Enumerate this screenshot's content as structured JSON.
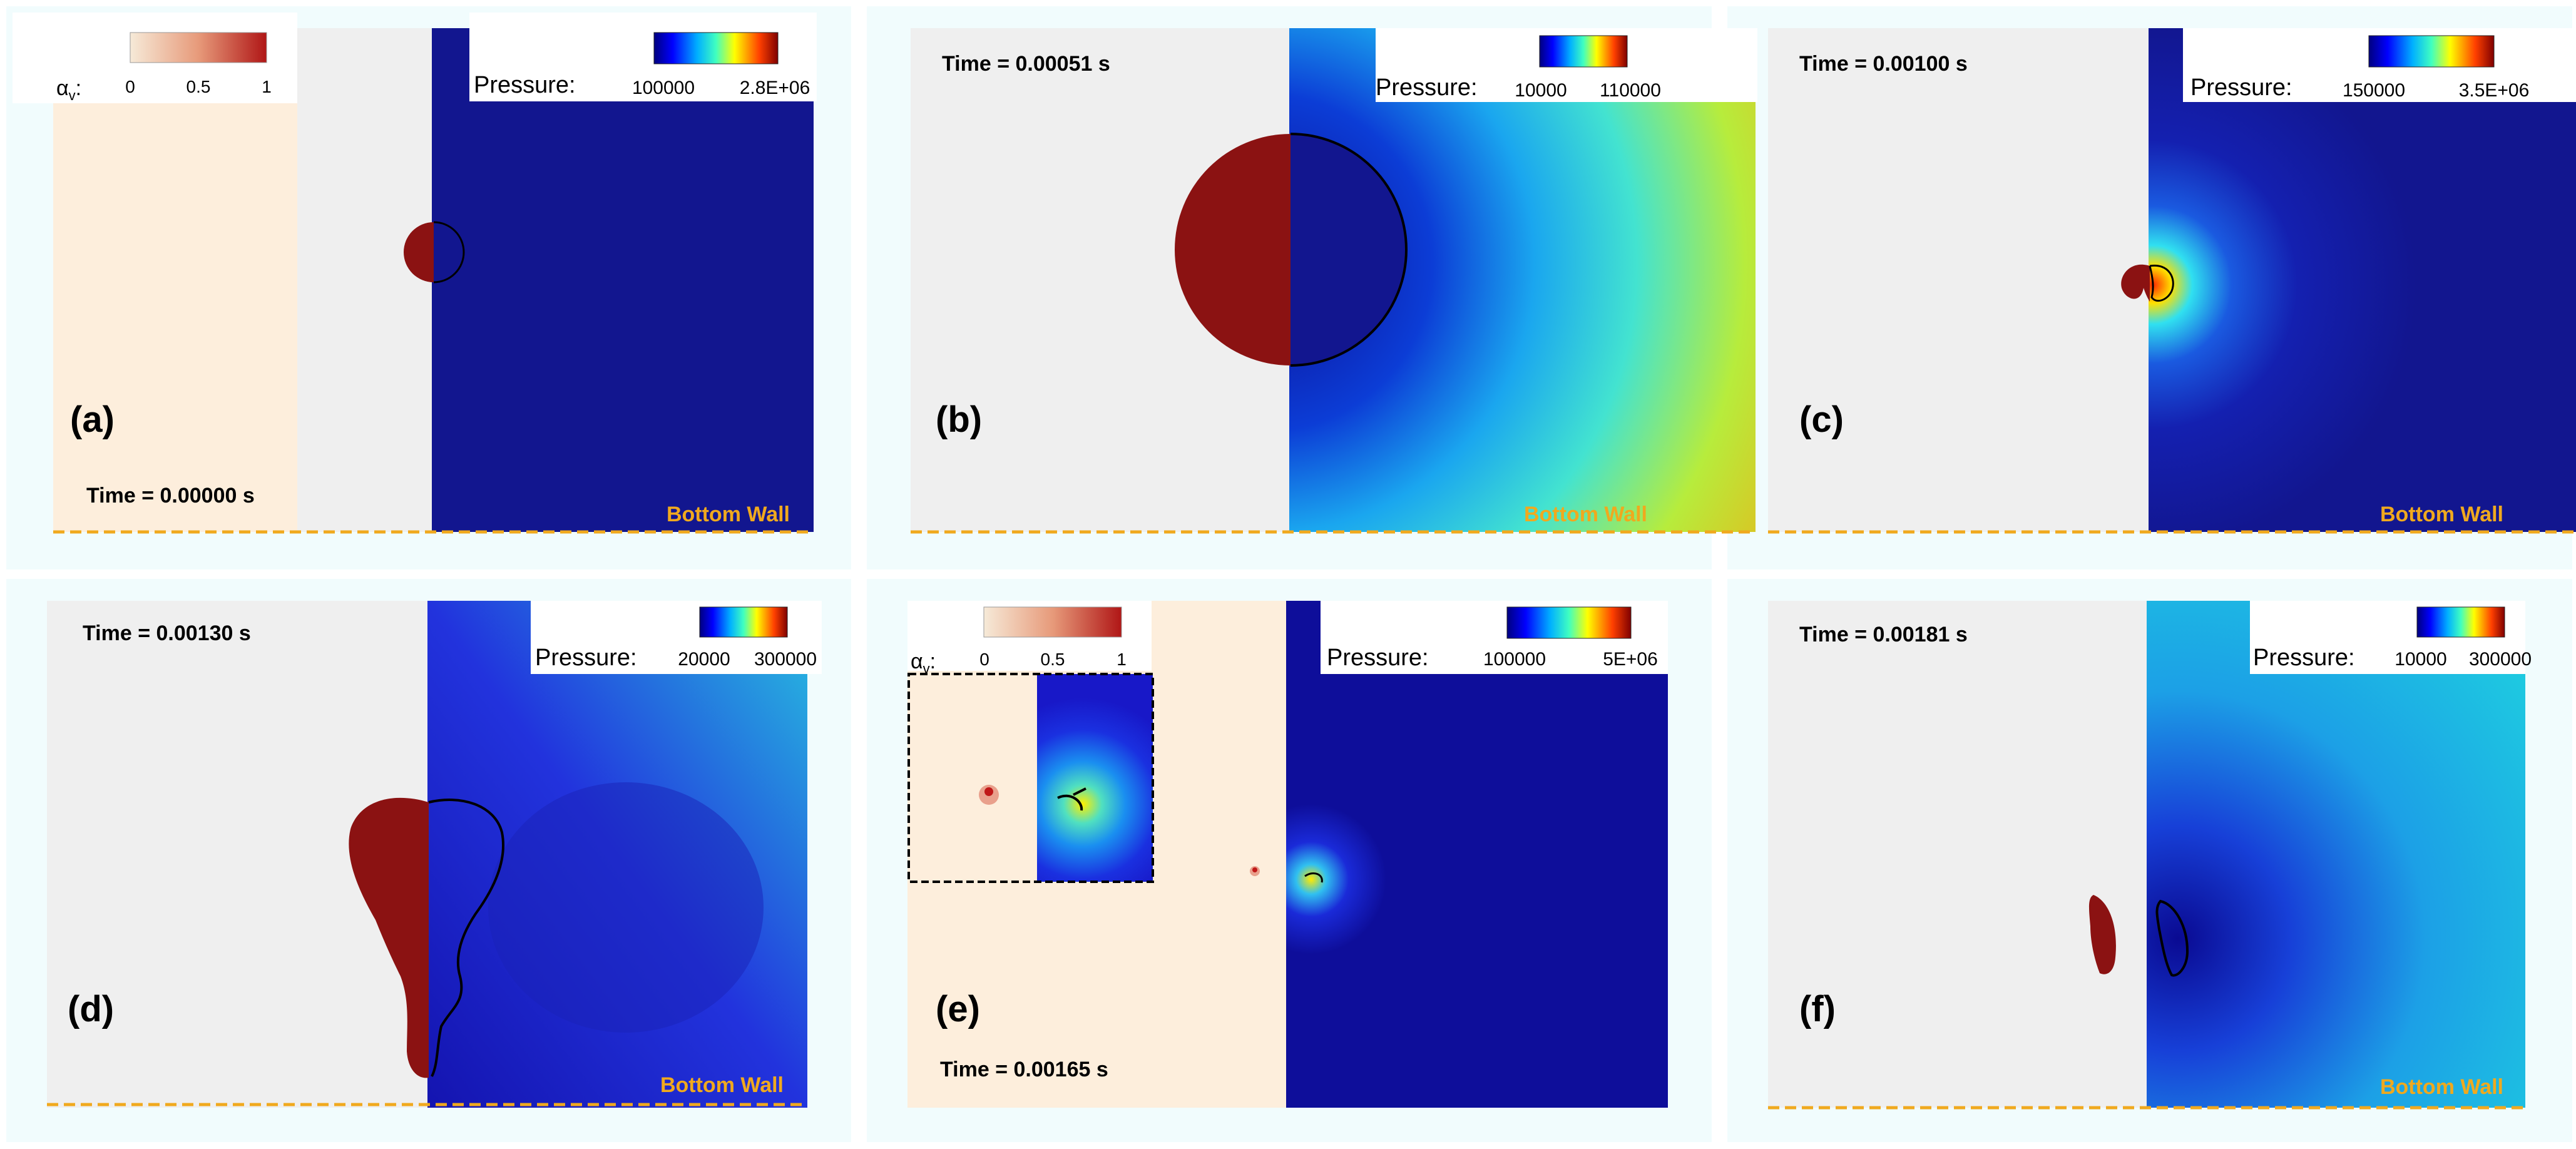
{
  "colors": {
    "panel_bg": "#f1fcfd",
    "left_gray": "#efefef",
    "left_peach": "#fdeedc",
    "droplet": "#8b1212",
    "wall_line": "#f0a91e",
    "pressure_low": "#0f148f"
  },
  "alpha_bar": {
    "symbol": "α",
    "subscript": "v",
    "ticks": [
      "0",
      "0.5",
      "1"
    ]
  },
  "pressure_label": "Pressure:",
  "wall_label": "Bottom Wall",
  "panels": [
    {
      "label": "(a)",
      "time": "Time = 0.00000 s",
      "pmin": "100000",
      "pmax": "2.8E+06"
    },
    {
      "label": "(b)",
      "time": "Time = 0.00051 s",
      "pmin": "10000",
      "pmax": "110000"
    },
    {
      "label": "(c)",
      "time": "Time = 0.00100 s",
      "pmin": "150000",
      "pmax": "3.5E+06"
    },
    {
      "label": "(d)",
      "time": "Time = 0.00130 s",
      "pmin": "20000",
      "pmax": "300000"
    },
    {
      "label": "(e)",
      "time": "Time = 0.00165 s",
      "pmin": "100000",
      "pmax": "5E+06"
    },
    {
      "label": "(f)",
      "time": "Time = 0.00181 s",
      "pmin": "10000",
      "pmax": "300000"
    }
  ]
}
